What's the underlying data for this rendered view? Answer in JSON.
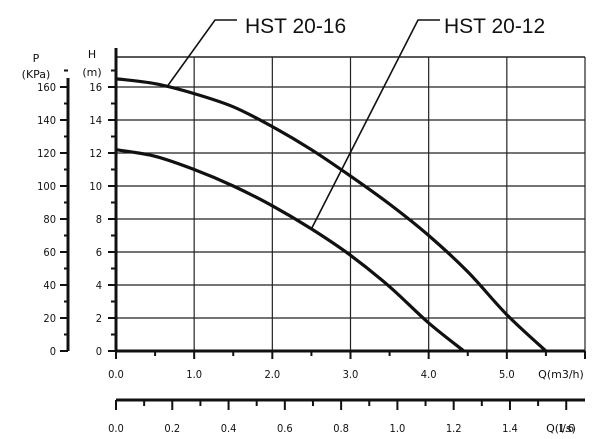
{
  "chart_data": {
    "type": "line",
    "title": "",
    "xlabel": "Q(m3/h)",
    "ylabel": "H",
    "ylabel_unit": "(m)",
    "y2label": "P",
    "y2label_unit": "(KPa)",
    "x2label": "Q(l/s)",
    "xlim": [
      0,
      6
    ],
    "ylim": [
      0,
      16
    ],
    "x_ticks": [
      "0.0",
      "1.0",
      "2.0",
      "3.0",
      "4.0",
      "5.0"
    ],
    "y_ticks": [
      "0",
      "2",
      "4",
      "6",
      "8",
      "10",
      "12",
      "14",
      "16"
    ],
    "p_ticks": [
      "0",
      "20",
      "40",
      "60",
      "80",
      "100",
      "120",
      "140",
      "160"
    ],
    "x2_ticks": [
      "0.0",
      "0.2",
      "0.4",
      "0.6",
      "0.8",
      "1.0",
      "1.2",
      "1.4",
      "1.6"
    ],
    "grid": true,
    "series": [
      {
        "name": "HST 20-16",
        "x": [
          0.0,
          0.5,
          1.0,
          1.5,
          2.0,
          2.5,
          3.0,
          3.5,
          4.0,
          4.5,
          5.0,
          5.5
        ],
        "y": [
          16.5,
          16.2,
          15.6,
          14.8,
          13.6,
          12.2,
          10.6,
          8.9,
          7.0,
          4.8,
          2.2,
          0.0
        ]
      },
      {
        "name": "HST 20-12",
        "x": [
          0.0,
          0.5,
          1.0,
          1.5,
          2.0,
          2.5,
          3.0,
          3.5,
          4.0,
          4.45
        ],
        "y": [
          12.2,
          11.8,
          11.0,
          10.0,
          8.8,
          7.4,
          5.8,
          3.9,
          1.7,
          0.0
        ]
      }
    ]
  }
}
